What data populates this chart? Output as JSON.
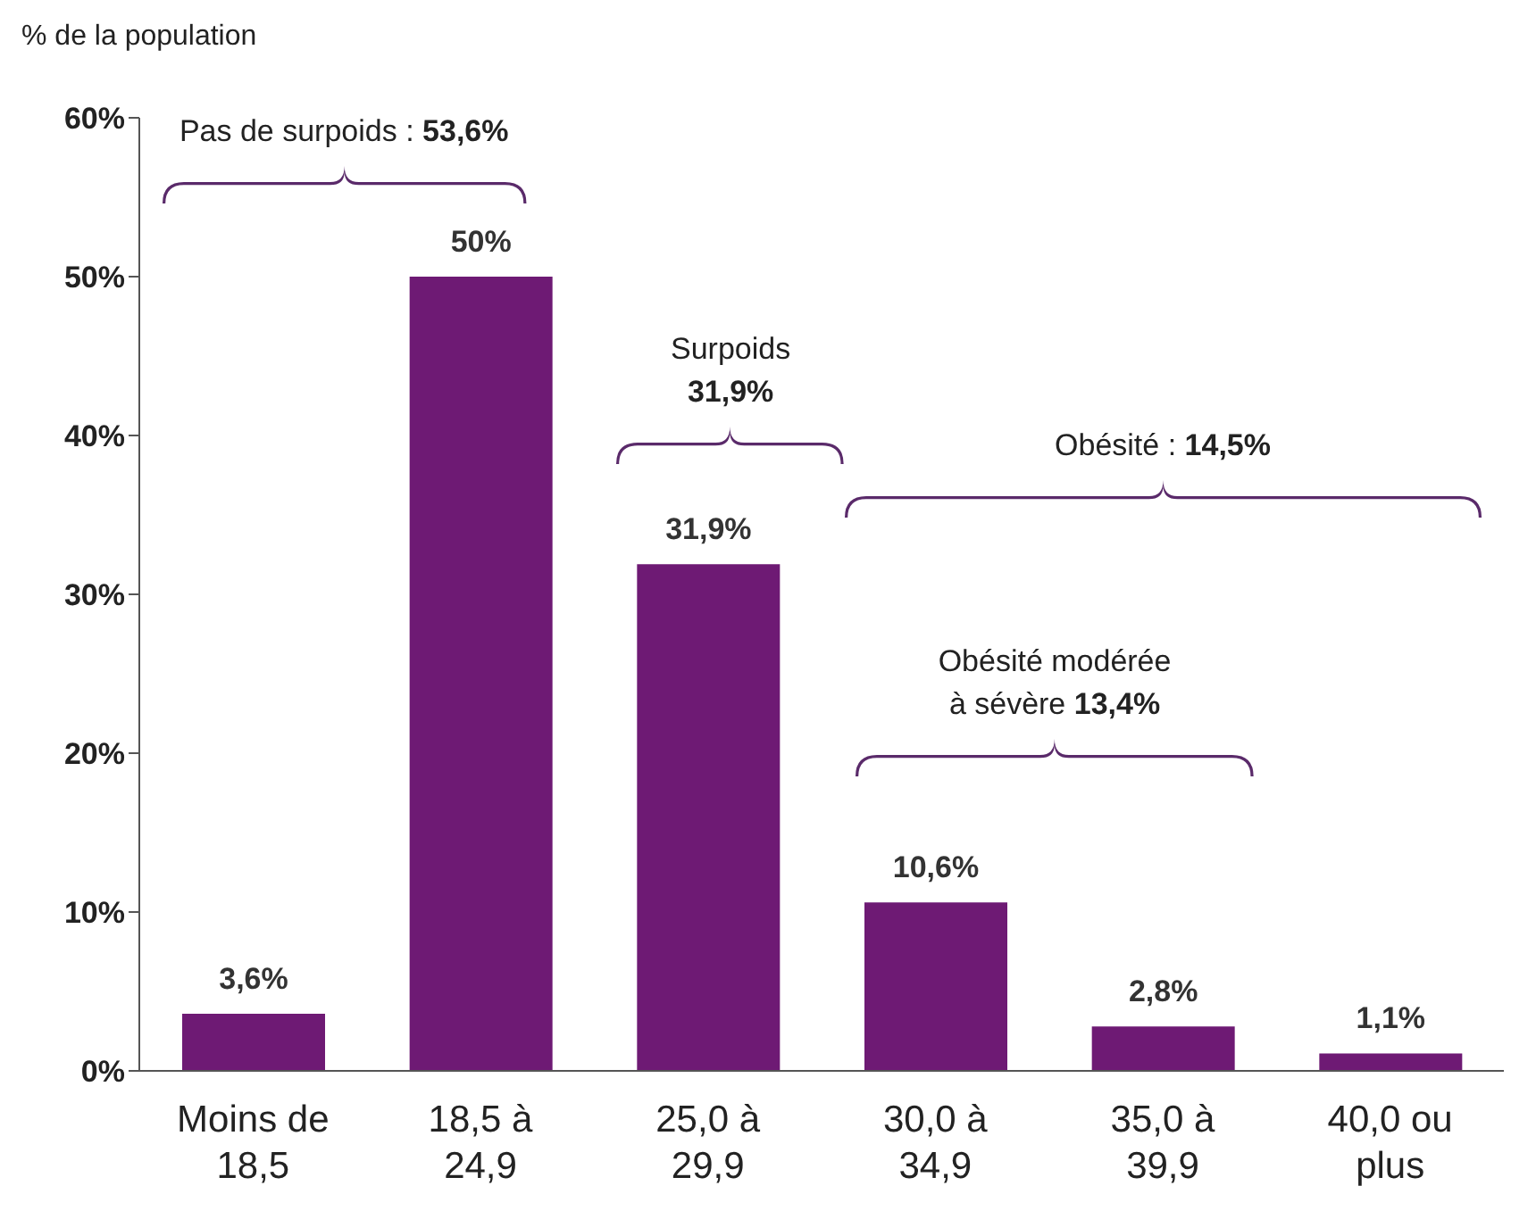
{
  "chart_data": {
    "type": "bar",
    "ylabel": "% de la population",
    "categories": [
      "Moins de 18,5",
      "18,5 à 24,9",
      "25,0 à 29,9",
      "30,0 à 34,9",
      "35,0 à 39,9",
      "40,0 ou plus"
    ],
    "values": [
      3.6,
      50,
      31.9,
      10.6,
      2.8,
      1.1
    ],
    "value_labels": [
      "3,6%",
      "50%",
      "31,9%",
      "10,6%",
      "2,8%",
      "1,1%"
    ],
    "color": "#6e1a74",
    "ylim": [
      0,
      60
    ],
    "yticks": [
      {
        "value": 0,
        "label": "0%"
      },
      {
        "value": 10,
        "label": "10%"
      },
      {
        "value": 20,
        "label": "20%"
      },
      {
        "value": 30,
        "label": "30%"
      },
      {
        "value": 40,
        "label": "40%"
      },
      {
        "value": 50,
        "label": "50%"
      },
      {
        "value": 60,
        "label": "60%"
      }
    ],
    "grid": false,
    "annotations": [
      "Pas de surpoids : 53,6%",
      "Surpoids 31,9%",
      "Obésité : 14,5%",
      "Obésité modérée à sévère 13,4%"
    ]
  }
}
